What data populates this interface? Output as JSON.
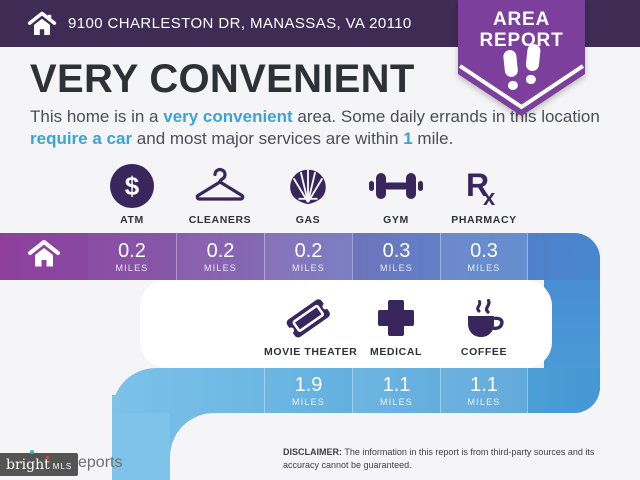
{
  "header": {
    "address": "9100 CHARLESTON DR, MANASSAS, VA 20110"
  },
  "badge": {
    "line1": "AREA",
    "line2": "REPORT"
  },
  "summary": {
    "title": "VERY CONVENIENT",
    "description_segments": [
      {
        "text": "This home is in a ",
        "highlight": false
      },
      {
        "text": "very convenient",
        "highlight": true
      },
      {
        "text": " area. Some daily errands in this location ",
        "highlight": false
      },
      {
        "text": "require a car",
        "highlight": true
      },
      {
        "text": " and most major services are within ",
        "highlight": false
      },
      {
        "text": "1",
        "highlight": true
      },
      {
        "text": " mile.",
        "highlight": false
      }
    ]
  },
  "amenities_row1": [
    {
      "label": "ATM",
      "icon": "atm-icon",
      "distance": "0.2",
      "unit": "MILES"
    },
    {
      "label": "CLEANERS",
      "icon": "hanger-icon",
      "distance": "0.2",
      "unit": "MILES"
    },
    {
      "label": "GAS",
      "icon": "shell-icon",
      "distance": "0.2",
      "unit": "MILES"
    },
    {
      "label": "GYM",
      "icon": "dumbbell-icon",
      "distance": "0.3",
      "unit": "MILES"
    },
    {
      "label": "PHARMACY",
      "icon": "rx-icon",
      "distance": "0.3",
      "unit": "MILES"
    }
  ],
  "amenities_row2": [
    {
      "label": "MOVIE THEATER",
      "icon": "ticket-icon",
      "distance": "1.9",
      "unit": "MILES"
    },
    {
      "label": "MEDICAL",
      "icon": "cross-icon",
      "distance": "1.1",
      "unit": "MILES"
    },
    {
      "label": "COFFEE",
      "icon": "coffee-icon",
      "distance": "1.1",
      "unit": "MILES"
    }
  ],
  "footer": {
    "logo_primary": "bright",
    "logo_secondary": "MLS",
    "logo_suffix": "eports",
    "disclaimer_label": "DISCLAIMER:",
    "disclaimer_text": " The information in this report is from third-party sources and its accuracy cannot be guaranteed."
  },
  "colors": {
    "top_bar": "#3E2C55",
    "badge": "#7C3F9C",
    "icon": "#38265C",
    "highlight": "#3AA4D5",
    "title_text": "#2E3238",
    "body_text": "#4A4F55",
    "band1_start": "#8E3F9C",
    "band1_end": "#4787CF",
    "band2_start": "#7CC2E9",
    "band2_end": "#4497D4",
    "strip": "#7EC4EA",
    "page_bg": "#F5F4F6"
  }
}
